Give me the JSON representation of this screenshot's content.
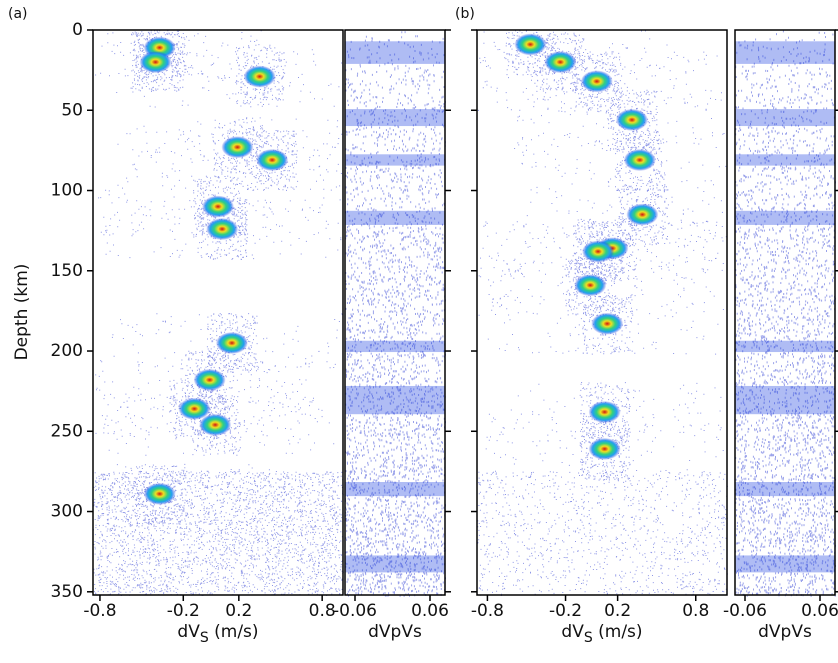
{
  "chart_data": [
    {
      "type": "density",
      "panel_label": "(a)",
      "ylabel": "Depth (km)",
      "xlabel": [
        "dV",
        "S",
        " (m/s)"
      ],
      "xlim": [
        -0.85,
        0.95
      ],
      "xticks": [
        -0.8,
        -0.2,
        0.2,
        0.8
      ],
      "ylim": [
        0,
        352
      ],
      "yticks": [
        0,
        50,
        100,
        150,
        200,
        250,
        300,
        350
      ],
      "hotspots": {
        "x": [
          -0.37,
          -0.4,
          0.35,
          0.19,
          0.44,
          0.05,
          0.08,
          0.15,
          -0.01,
          -0.12,
          0.03,
          -0.37
        ],
        "y": [
          11,
          20,
          29,
          73,
          81,
          110,
          124,
          195,
          218,
          236,
          246,
          289
        ]
      }
    },
    {
      "type": "bands",
      "xlabel": "dVpVs",
      "xlim": [
        -0.076,
        0.084
      ],
      "xticks": [
        -0.06,
        0.06
      ],
      "ylim": [
        0,
        352
      ]
    },
    {
      "type": "density",
      "panel_label": "(b)",
      "xlabel": [
        "dV",
        "S",
        " (m/s)"
      ],
      "xlim": [
        -0.88,
        1.04
      ],
      "xticks": [
        -0.8,
        -0.2,
        0.2,
        0.8
      ],
      "ylim": [
        0,
        352
      ],
      "hotspots": {
        "x": [
          -0.47,
          -0.24,
          0.04,
          0.31,
          0.37,
          0.39,
          0.16,
          0.05,
          -0.01,
          0.12,
          0.1,
          0.1
        ],
        "y": [
          9,
          20,
          32,
          56,
          81,
          115,
          136,
          138,
          159,
          183,
          238,
          261
        ]
      }
    },
    {
      "type": "bands",
      "xlabel": "dVpVs",
      "xlim": [
        -0.076,
        0.084
      ],
      "xticks": [
        -0.06,
        0.06
      ],
      "ylim": [
        0,
        352
      ]
    }
  ]
}
